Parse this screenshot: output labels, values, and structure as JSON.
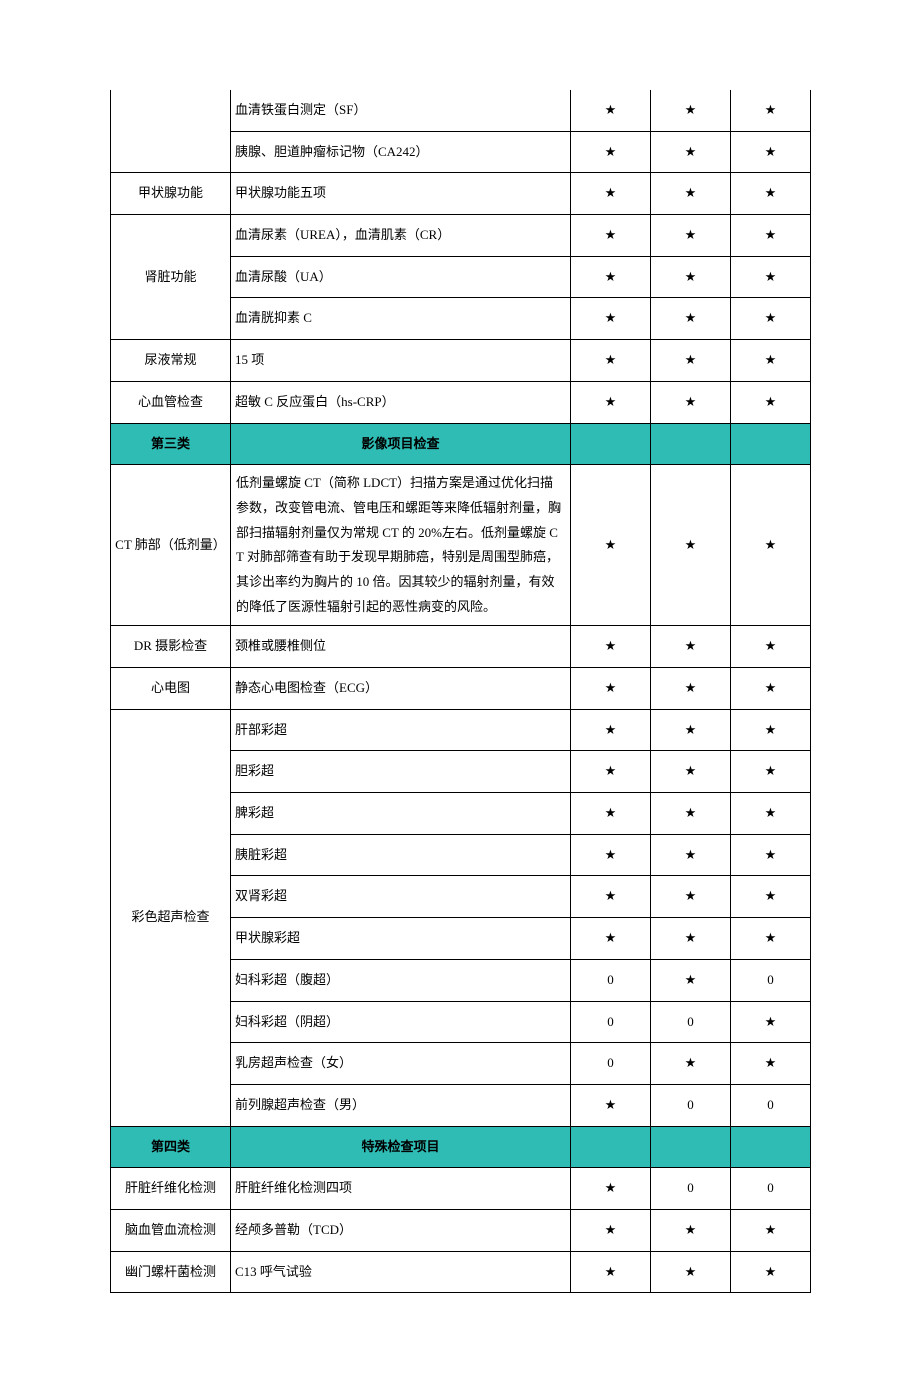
{
  "colors": {
    "sectionBg": "#2fbcb4",
    "border": "#000000",
    "pageBg": "#ffffff",
    "text": "#000000"
  },
  "star": "★",
  "zero": "0",
  "rows": [
    {
      "type": "data",
      "cat": "",
      "item": "血清铁蛋白测定（SF）",
      "catRowspan": 2,
      "openTop": true,
      "m": [
        "★",
        "★",
        "★"
      ]
    },
    {
      "type": "data",
      "item": "胰腺、胆道肿瘤标记物（CA242）",
      "m": [
        "★",
        "★",
        "★"
      ]
    },
    {
      "type": "data",
      "cat": "甲状腺功能",
      "item": "甲状腺功能五项",
      "m": [
        "★",
        "★",
        "★"
      ]
    },
    {
      "type": "data",
      "cat": "肾脏功能",
      "catRowspan": 3,
      "item": "血清尿素（UREA），血清肌素（CR）",
      "m": [
        "★",
        "★",
        "★"
      ]
    },
    {
      "type": "data",
      "item": "血清尿酸（UA）",
      "m": [
        "★",
        "★",
        "★"
      ]
    },
    {
      "type": "data",
      "item": "血清胱抑素 C",
      "m": [
        "★",
        "★",
        "★"
      ]
    },
    {
      "type": "data",
      "cat": "尿液常规",
      "item": "15 项",
      "m": [
        "★",
        "★",
        "★"
      ]
    },
    {
      "type": "data",
      "cat": "心血管检查",
      "item": "超敏 C 反应蛋白（hs-CRP）",
      "m": [
        "★",
        "★",
        "★"
      ]
    },
    {
      "type": "section",
      "cat": "第三类",
      "item": "影像项目检查"
    },
    {
      "type": "data",
      "cat": "CT 肺部（低剂量）",
      "itemClass": "long",
      "item": "低剂量螺旋 CT（简称 LDCT）扫描方案是通过优化扫描参数，改变管电流、管电压和螺距等来降低辐射剂量，胸部扫描辐射剂量仅为常规 CT 的 20%左右。低剂量螺旋 CT 对肺部筛查有助于发现早期肺癌，特别是周围型肺癌，其诊出率约为胸片的 10 倍。因其较少的辐射剂量，有效的降低了医源性辐射引起的恶性病变的风险。",
      "m": [
        "★",
        "★",
        "★"
      ]
    },
    {
      "type": "data",
      "cat": "DR 摄影检查",
      "item": "颈椎或腰椎侧位",
      "m": [
        "★",
        "★",
        "★"
      ]
    },
    {
      "type": "data",
      "cat": "心电图",
      "item": "静态心电图检查（ECG）",
      "m": [
        "★",
        "★",
        "★"
      ]
    },
    {
      "type": "data",
      "cat": "彩色超声检查",
      "catRowspan": 10,
      "item": "肝部彩超",
      "m": [
        "★",
        "★",
        "★"
      ]
    },
    {
      "type": "data",
      "item": "胆彩超",
      "m": [
        "★",
        "★",
        "★"
      ]
    },
    {
      "type": "data",
      "item": "脾彩超",
      "m": [
        "★",
        "★",
        "★"
      ]
    },
    {
      "type": "data",
      "item": "胰脏彩超",
      "m": [
        "★",
        "★",
        "★"
      ]
    },
    {
      "type": "data",
      "item": "双肾彩超",
      "m": [
        "★",
        "★",
        "★"
      ]
    },
    {
      "type": "data",
      "item": "甲状腺彩超",
      "m": [
        "★",
        "★",
        "★"
      ]
    },
    {
      "type": "data",
      "item": "妇科彩超（腹超）",
      "m": [
        "0",
        "★",
        "0"
      ]
    },
    {
      "type": "data",
      "item": "妇科彩超（阴超）",
      "m": [
        "0",
        "0",
        "★"
      ]
    },
    {
      "type": "data",
      "item": "乳房超声检查（女）",
      "m": [
        "0",
        "★",
        "★"
      ]
    },
    {
      "type": "data",
      "item": "前列腺超声检查（男）",
      "m": [
        "★",
        "0",
        "0"
      ]
    },
    {
      "type": "section",
      "cat": "第四类",
      "item": "特殊检查项目"
    },
    {
      "type": "data",
      "cat": "肝脏纤维化检测",
      "item": "肝脏纤维化检测四项",
      "m": [
        "★",
        "0",
        "0"
      ]
    },
    {
      "type": "data",
      "cat": "脑血管血流检测",
      "item": "经颅多普勒（TCD）",
      "m": [
        "★",
        "★",
        "★"
      ]
    },
    {
      "type": "data",
      "cat": "幽门螺杆菌检测",
      "item": "C13 呼气试验",
      "m": [
        "★",
        "★",
        "★"
      ]
    }
  ]
}
